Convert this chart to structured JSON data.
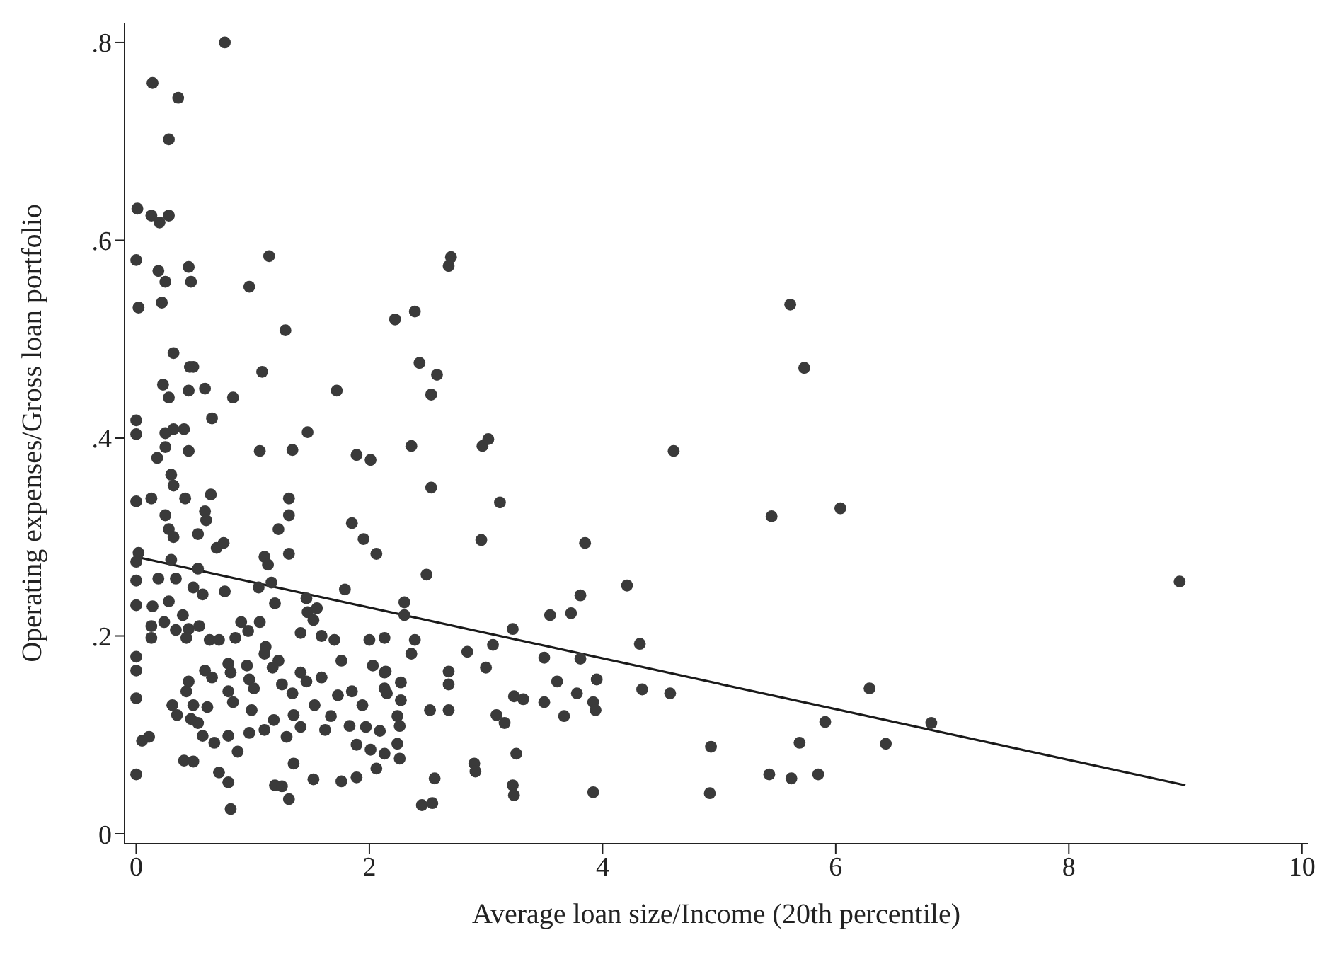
{
  "chart_data": {
    "type": "scatter",
    "xlabel": "Average loan size/Income (20th percentile)",
    "ylabel": "Operating expenses/Gross loan portfolio",
    "xlim": [
      -0.1,
      10.05
    ],
    "ylim": [
      -0.01,
      0.82
    ],
    "xticks": [
      0,
      2,
      4,
      6,
      8,
      10
    ],
    "yticks": [
      0,
      {
        "value": 0.2,
        "label": ".2"
      },
      {
        "value": 0.4,
        "label": ".4"
      },
      {
        "value": 0.6,
        "label": ".6"
      },
      {
        "value": 0.8,
        "label": ".8"
      }
    ],
    "grid": false,
    "legend": false,
    "marker": "circle",
    "series": [
      {
        "color": "#3a3a3a",
        "x": [
          0.76,
          0.14,
          0.36,
          0.28,
          0.01,
          0.13,
          0.2,
          0.28,
          0,
          0.19,
          0.45,
          1.14,
          0.25,
          0.47,
          0.97,
          0.02,
          0.22,
          1.28,
          0.32,
          0.46,
          0.49,
          1.08,
          0.23,
          0.28,
          0.45,
          0.59,
          0.83,
          1.72,
          0,
          0,
          0.65,
          0.25,
          0.32,
          0.41,
          1.47,
          2.22,
          2.68,
          2.7,
          2.39,
          2.43,
          2.58,
          2.53,
          2.36,
          2.97,
          3.02,
          4.61,
          2.53,
          3.12,
          2.96,
          3.85,
          2.49,
          4.21,
          2.3,
          2.3,
          3.81,
          3.55,
          3.73,
          3.23,
          2.13,
          2.39,
          2.36,
          2.84,
          3.06,
          3.0,
          3.5,
          3.81,
          4.32,
          2.68,
          2.68,
          2.14,
          2.27,
          3.61,
          3.95,
          3.78,
          4.34,
          4.58,
          2.15,
          2.27,
          3.24,
          3.32,
          3.5,
          3.92,
          3.94,
          3.67,
          2.52,
          2.68,
          3.09,
          3.16,
          2.24,
          2.26,
          2.24,
          2.13,
          2.26,
          3.26,
          2.9,
          2.91,
          2.56,
          3.23,
          3.24,
          3.92,
          2.45,
          2.54,
          5.61,
          5.73,
          5.45,
          6.04,
          8.95,
          6.29,
          4.93,
          4.92,
          5.69,
          5.91,
          6.43,
          6.82,
          5.43,
          5.62,
          5.85,
          0.25,
          0.18,
          0.45,
          1.06,
          1.34,
          1.89,
          2.01,
          0.3,
          0.32,
          0,
          0.13,
          0.42,
          0.64,
          1.31,
          0.25,
          0.28,
          0.32,
          0.59,
          0.6,
          1.31,
          1.22,
          0.53,
          1.85,
          1.95,
          2.06,
          1.31,
          0.69,
          0.75,
          0.02,
          0,
          0.3,
          1.1,
          1.13,
          0,
          0.19,
          0.34,
          0.53,
          0.49,
          0.57,
          0.76,
          1.05,
          1.16,
          1.79,
          0,
          0.14,
          0.28,
          0.4,
          1.19,
          1.46,
          1.47,
          1.55,
          0.13,
          0.24,
          0.34,
          0.45,
          0.54,
          0.13,
          0.43,
          0.63,
          0.71,
          0.85,
          0.9,
          0.96,
          1.06,
          1.41,
          1.52,
          1.59,
          1.7,
          2.0,
          0,
          0,
          1.11,
          1.1,
          1.22,
          1.17,
          1.76,
          0.59,
          0.65,
          0.79,
          0.81,
          0.95,
          0.97,
          1.01,
          1.41,
          1.46,
          1.25,
          1.34,
          1.59,
          2.03,
          2.13,
          2.13,
          0,
          0.45,
          0.43,
          0.31,
          0.35,
          0.49,
          0.61,
          0.79,
          0.83,
          0.99,
          1.53,
          1.73,
          1.85,
          1.94,
          1.67,
          1.35,
          1.41,
          1.18,
          1.1,
          0.97,
          0.79,
          0.67,
          0.53,
          0.57,
          0.47,
          1.83,
          1.97,
          2.09,
          1.62,
          1.89,
          2.01,
          2.06,
          1.29,
          0.05,
          0.11,
          0.87,
          0.41,
          0.49,
          1.35,
          0,
          0.71,
          0.79,
          1.52,
          1.76,
          1.89,
          1.19,
          1.25,
          1.31,
          0.81
        ],
        "values": [
          0.8,
          0.759,
          0.744,
          0.702,
          0.632,
          0.625,
          0.618,
          0.625,
          0.58,
          0.569,
          0.573,
          0.584,
          0.558,
          0.558,
          0.553,
          0.532,
          0.537,
          0.509,
          0.486,
          0.472,
          0.472,
          0.467,
          0.454,
          0.441,
          0.448,
          0.45,
          0.441,
          0.448,
          0.418,
          0.404,
          0.42,
          0.405,
          0.409,
          0.409,
          0.406,
          0.52,
          0.574,
          0.583,
          0.528,
          0.476,
          0.464,
          0.444,
          0.392,
          0.392,
          0.399,
          0.387,
          0.35,
          0.335,
          0.297,
          0.294,
          0.262,
          0.251,
          0.234,
          0.221,
          0.241,
          0.221,
          0.223,
          0.207,
          0.198,
          0.196,
          0.182,
          0.184,
          0.191,
          0.168,
          0.178,
          0.177,
          0.192,
          0.164,
          0.151,
          0.164,
          0.153,
          0.154,
          0.156,
          0.142,
          0.146,
          0.142,
          0.142,
          0.135,
          0.139,
          0.136,
          0.133,
          0.133,
          0.125,
          0.119,
          0.125,
          0.125,
          0.12,
          0.112,
          0.119,
          0.109,
          0.091,
          0.081,
          0.076,
          0.081,
          0.071,
          0.063,
          0.056,
          0.049,
          0.039,
          0.042,
          0.029,
          0.031,
          0.535,
          0.471,
          0.321,
          0.329,
          0.255,
          0.147,
          0.088,
          0.041,
          0.092,
          0.113,
          0.091,
          0.112,
          0.06,
          0.056,
          0.06,
          0.391,
          0.38,
          0.387,
          0.387,
          0.388,
          0.383,
          0.378,
          0.363,
          0.352,
          0.336,
          0.339,
          0.339,
          0.343,
          0.339,
          0.322,
          0.308,
          0.3,
          0.326,
          0.317,
          0.322,
          0.308,
          0.303,
          0.314,
          0.298,
          0.283,
          0.283,
          0.289,
          0.294,
          0.284,
          0.275,
          0.277,
          0.28,
          0.272,
          0.256,
          0.258,
          0.258,
          0.268,
          0.249,
          0.242,
          0.245,
          0.249,
          0.254,
          0.247,
          0.231,
          0.23,
          0.235,
          0.221,
          0.233,
          0.238,
          0.224,
          0.228,
          0.21,
          0.214,
          0.206,
          0.207,
          0.21,
          0.198,
          0.198,
          0.196,
          0.196,
          0.198,
          0.214,
          0.205,
          0.214,
          0.203,
          0.216,
          0.2,
          0.196,
          0.196,
          0.179,
          0.165,
          0.189,
          0.182,
          0.175,
          0.168,
          0.175,
          0.165,
          0.158,
          0.172,
          0.163,
          0.17,
          0.156,
          0.147,
          0.163,
          0.154,
          0.151,
          0.142,
          0.158,
          0.17,
          0.163,
          0.147,
          0.137,
          0.154,
          0.144,
          0.13,
          0.12,
          0.13,
          0.128,
          0.144,
          0.133,
          0.125,
          0.13,
          0.14,
          0.144,
          0.13,
          0.119,
          0.12,
          0.108,
          0.115,
          0.105,
          0.102,
          0.099,
          0.092,
          0.112,
          0.099,
          0.116,
          0.109,
          0.108,
          0.104,
          0.105,
          0.09,
          0.085,
          0.066,
          0.098,
          0.094,
          0.098,
          0.083,
          0.074,
          0.073,
          0.071,
          0.06,
          0.062,
          0.052,
          0.055,
          0.053,
          0.057,
          0.049,
          0.048,
          0.035,
          0.025
        ]
      },
      {
        "type": "line",
        "color": "#1a1a1a",
        "marker": "none",
        "x": [
          0,
          9
        ],
        "values": [
          0.28,
          0.049
        ]
      }
    ]
  }
}
